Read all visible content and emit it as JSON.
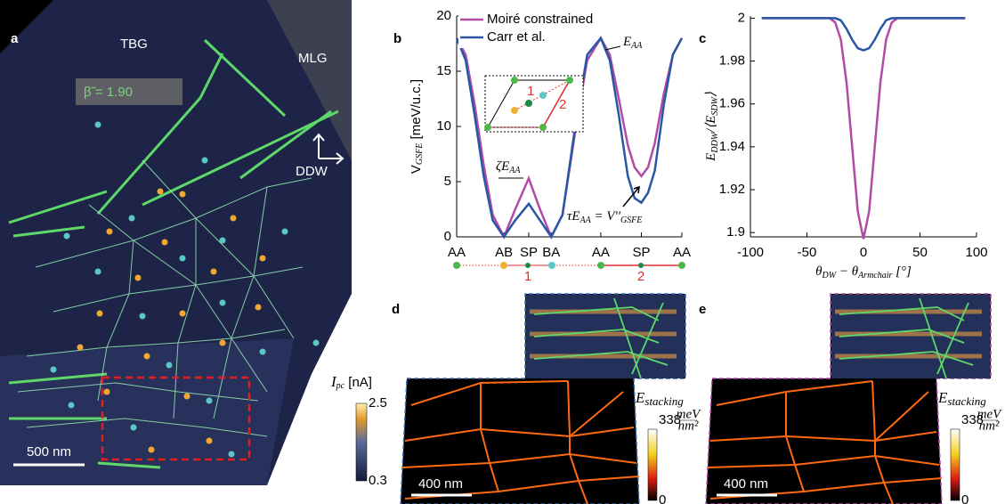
{
  "panels": {
    "a": {
      "label": "a",
      "tbg": "TBG",
      "mlg": "MLG",
      "beta": "β̃ = 1.90",
      "ddw": "DDW",
      "scale": "500 nm",
      "colorbar": {
        "label": [
          "I",
          "pc",
          " [nA]"
        ],
        "max": "2.5",
        "min": "0.3"
      }
    },
    "b": {
      "label": "b",
      "path_labels": [
        "1",
        "2"
      ],
      "inset_labels": [
        "1",
        "2"
      ]
    },
    "c": {
      "label": "c"
    },
    "d": {
      "label": "d",
      "scale": "400 nm",
      "colorbar": {
        "label": [
          "E",
          "stacking"
        ],
        "max": "338",
        "unit_num": "meV",
        "unit_den": "nm²",
        "min": "0"
      }
    },
    "e": {
      "label": "e",
      "scale": "400 nm",
      "colorbar": {
        "label": [
          "E",
          "stacking"
        ],
        "max": "338",
        "unit_num": "meV",
        "unit_den": "nm²",
        "min": "0"
      }
    }
  },
  "chart_data": [
    {
      "type": "line",
      "y_label": [
        "V",
        "GSFE",
        " [meV/u.c.]"
      ],
      "x": [
        0,
        0.04,
        0.08,
        0.12,
        0.16,
        0.21,
        0.26,
        0.32,
        0.37,
        0.42,
        0.47,
        0.53,
        0.58,
        0.64,
        0.68,
        0.72,
        0.76,
        0.79,
        0.82,
        0.85,
        0.88,
        0.92,
        0.96,
        1.0
      ],
      "series": [
        {
          "name": "Moiré constrained",
          "color": "#b14ba6",
          "values": [
            18,
            16.5,
            12,
            6.5,
            2,
            0,
            2.5,
            5.3,
            2.5,
            0,
            2,
            10,
            16,
            18,
            16.5,
            12.5,
            8.3,
            6.3,
            5.5,
            6.3,
            8.5,
            13,
            16.5,
            18
          ]
        },
        {
          "name": "Carr et al.",
          "color": "#2a57a5",
          "values": [
            18,
            16,
            11,
            5.5,
            1.5,
            0,
            1.5,
            3,
            1.5,
            0,
            2,
            10.5,
            16.5,
            18,
            16,
            11,
            5.5,
            3.5,
            3.1,
            4,
            6,
            12,
            16.5,
            18
          ]
        }
      ],
      "xlim": [
        0,
        1
      ],
      "xticks": [
        {
          "value": 0,
          "label": "AA"
        },
        {
          "value": 0.21,
          "label": "AB"
        },
        {
          "value": 0.32,
          "label": "SP"
        },
        {
          "value": 0.42,
          "label": "BA"
        },
        {
          "value": 0.64,
          "label": "AA"
        },
        {
          "value": 0.82,
          "label": "SP"
        },
        {
          "value": 1.0,
          "label": "AA"
        }
      ],
      "ylim": [
        0,
        20
      ],
      "yticks": [
        0,
        5,
        10,
        15,
        20
      ],
      "legend": "top-left",
      "annotations": {
        "zeta": [
          "ζE",
          "AA"
        ],
        "eaa": [
          "E",
          "AA"
        ],
        "tau": [
          "τE",
          "AA",
          " = V''",
          "GSFE"
        ]
      }
    },
    {
      "type": "line",
      "y_label": [
        "E",
        "DDW",
        "/⟨E",
        "SDW",
        "⟩"
      ],
      "x_label": [
        "θ",
        "DW",
        " − θ",
        "Armchair",
        " [°]"
      ],
      "x": [
        -90,
        -30,
        -25,
        -20,
        -15,
        -10,
        -5,
        0,
        5,
        10,
        15,
        20,
        25,
        30,
        90
      ],
      "series": [
        {
          "color": "#b14ba6",
          "values": [
            2,
            2,
            1.998,
            1.99,
            1.97,
            1.94,
            1.91,
            1.897,
            1.91,
            1.94,
            1.97,
            1.99,
            1.998,
            2,
            2
          ]
        },
        {
          "color": "#2a57a5",
          "values": [
            2,
            2,
            2,
            1.999,
            1.995,
            1.99,
            1.986,
            1.985,
            1.986,
            1.99,
            1.995,
            1.999,
            2,
            2,
            2
          ]
        }
      ],
      "xlim": [
        -100,
        100
      ],
      "xticks": [
        -100,
        -50,
        0,
        50,
        100
      ],
      "ylim": [
        1.898,
        2.001
      ],
      "yticks": [
        1.9,
        1.92,
        1.94,
        1.96,
        1.98,
        2
      ]
    }
  ]
}
